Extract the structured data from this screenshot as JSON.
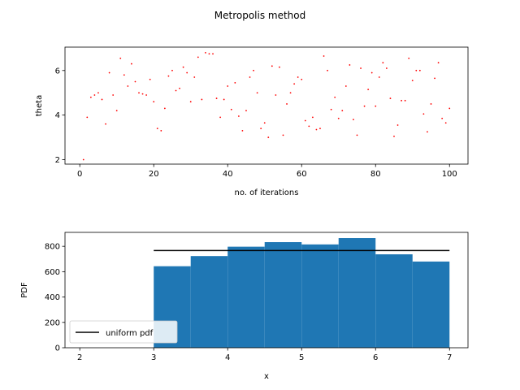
{
  "chart_data": [
    {
      "type": "scatter",
      "suptitle": "Metropolis method",
      "xlabel": "no. of iterations",
      "ylabel": "theta",
      "xlim": [
        -4,
        105
      ],
      "ylim": [
        1.8,
        7.05
      ],
      "xticks": [
        0,
        20,
        40,
        60,
        80,
        100
      ],
      "yticks": [
        2,
        4,
        6
      ],
      "marker_color": "#ff0000",
      "x": [
        1,
        2,
        3,
        4,
        5,
        6,
        7,
        8,
        9,
        10,
        11,
        12,
        13,
        14,
        15,
        16,
        17,
        18,
        19,
        20,
        21,
        22,
        23,
        24,
        25,
        26,
        27,
        28,
        29,
        30,
        31,
        32,
        33,
        34,
        35,
        36,
        37,
        38,
        39,
        40,
        41,
        42,
        43,
        44,
        45,
        46,
        47,
        48,
        49,
        50,
        51,
        52,
        53,
        54,
        55,
        56,
        57,
        58,
        59,
        60,
        61,
        62,
        63,
        64,
        65,
        66,
        67,
        68,
        69,
        70,
        71,
        72,
        73,
        74,
        75,
        76,
        77,
        78,
        79,
        80,
        81,
        82,
        83,
        84,
        85,
        86,
        87,
        88,
        89,
        90,
        91,
        92,
        93,
        94,
        95,
        96,
        97,
        98,
        99,
        100
      ],
      "y": [
        2.0,
        3.9,
        4.8,
        4.9,
        5.0,
        4.7,
        3.6,
        5.9,
        4.9,
        4.2,
        6.55,
        5.8,
        5.3,
        6.3,
        5.5,
        5.0,
        4.95,
        4.9,
        5.6,
        4.6,
        3.4,
        3.3,
        4.3,
        5.75,
        6.0,
        5.1,
        5.2,
        6.15,
        5.9,
        4.6,
        5.7,
        6.6,
        4.7,
        6.8,
        6.75,
        6.75,
        4.75,
        3.9,
        4.7,
        5.3,
        4.25,
        5.45,
        3.95,
        3.3,
        4.2,
        5.7,
        6.0,
        5.0,
        3.4,
        3.65,
        3.0,
        6.2,
        4.9,
        6.15,
        3.1,
        4.5,
        5.0,
        5.4,
        5.7,
        5.6,
        3.75,
        3.5,
        3.9,
        3.35,
        3.4,
        6.65,
        6.0,
        4.25,
        4.8,
        3.85,
        4.2,
        5.3,
        6.25,
        3.8,
        3.1,
        6.1,
        4.4,
        5.15,
        5.9,
        4.4,
        5.7,
        6.35,
        6.1,
        4.75,
        3.05,
        3.55,
        4.65,
        4.65,
        6.55,
        5.55,
        6.0,
        6.0,
        4.05,
        3.25,
        4.5,
        5.65,
        6.35,
        3.85,
        3.65,
        4.3
      ]
    },
    {
      "type": "bar",
      "xlabel": "x",
      "ylabel": "PDF",
      "xlim": [
        1.8,
        7.25
      ],
      "ylim": [
        0,
        910
      ],
      "xticks": [
        2,
        3,
        4,
        5,
        6,
        7
      ],
      "yticks": [
        0,
        200,
        400,
        600,
        800
      ],
      "bar_color": "#1f77b4",
      "bins": [
        {
          "x0": 3.0,
          "x1": 3.5,
          "value": 643
        },
        {
          "x0": 3.5,
          "x1": 4.0,
          "value": 723
        },
        {
          "x0": 4.0,
          "x1": 4.5,
          "value": 797
        },
        {
          "x0": 4.5,
          "x1": 5.0,
          "value": 833
        },
        {
          "x0": 5.0,
          "x1": 5.5,
          "value": 815
        },
        {
          "x0": 5.5,
          "x1": 6.0,
          "value": 865
        },
        {
          "x0": 6.0,
          "x1": 6.5,
          "value": 737
        },
        {
          "x0": 6.5,
          "x1": 7.0,
          "value": 680
        }
      ],
      "line": {
        "name": "uniform pdf",
        "x": [
          3,
          7
        ],
        "y": [
          767,
          767
        ],
        "color": "#000000"
      },
      "legend_position": "lower-left"
    }
  ]
}
